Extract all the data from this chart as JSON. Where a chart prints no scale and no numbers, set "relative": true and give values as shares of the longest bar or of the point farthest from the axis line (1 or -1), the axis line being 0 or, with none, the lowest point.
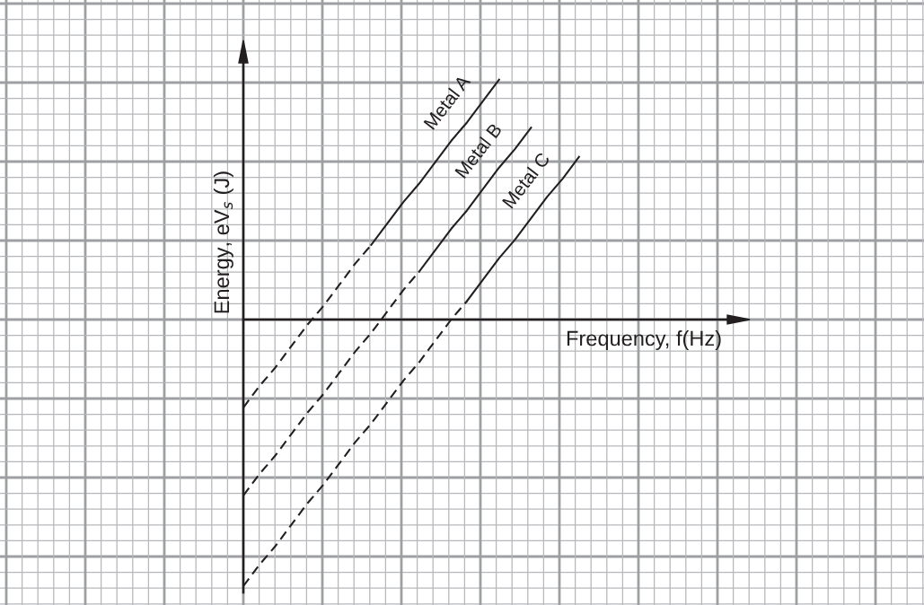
{
  "chart_data": {
    "type": "line",
    "relative": true,
    "grid": true,
    "xlabel": "Frequency, f(Hz)",
    "ylabel": "Energy, eV$_{s}$ (J)",
    "categories": [
      null,
      null,
      null,
      null,
      null,
      null,
      null,
      null,
      null,
      null,
      null,
      null,
      null,
      null,
      null,
      null,
      null,
      null,
      null,
      null,
      null,
      null
    ],
    "series": [
      {
        "name": "Metal A",
        "color": "#231f20",
        "line_style": "solid",
        "values": [
          null,
          null,
          null,
          null,
          null,
          null,
          null,
          null,
          0.28,
          0.36,
          0.44,
          0.51,
          0.59,
          0.67,
          0.74,
          0.82,
          0.9,
          null,
          null,
          null,
          null,
          null
        ]
      },
      {
        "color": "#231f20",
        "line_style": "dashed",
        "values": [
          -0.33,
          -0.25,
          -0.18,
          -0.1,
          -0.02,
          0.05,
          0.13,
          0.21,
          0.28,
          null,
          null,
          null,
          null,
          null,
          null,
          null,
          null,
          null,
          null,
          null,
          null,
          null
        ]
      },
      {
        "name": "Metal B",
        "color": "#231f20",
        "line_style": "solid",
        "values": [
          null,
          null,
          null,
          null,
          null,
          null,
          null,
          null,
          null,
          null,
          null,
          0.18,
          0.26,
          0.34,
          0.41,
          0.49,
          0.57,
          0.64,
          0.72,
          null,
          null,
          null
        ]
      },
      {
        "color": "#231f20",
        "line_style": "dashed",
        "values": [
          -0.66,
          -0.58,
          -0.51,
          -0.43,
          -0.35,
          -0.28,
          -0.2,
          -0.12,
          -0.05,
          0.03,
          0.11,
          0.18,
          null,
          null,
          null,
          null,
          null,
          null,
          null,
          null,
          null,
          null
        ]
      },
      {
        "name": "Metal C",
        "color": "#231f20",
        "line_style": "solid",
        "values": [
          null,
          null,
          null,
          null,
          null,
          null,
          null,
          null,
          null,
          null,
          null,
          null,
          null,
          null,
          0.07,
          0.15,
          0.23,
          0.3,
          0.38,
          0.46,
          0.53,
          0.61
        ]
      },
      {
        "color": "#231f20",
        "line_style": "dashed",
        "values": [
          -1,
          -0.92,
          -0.85,
          -0.77,
          -0.69,
          -0.62,
          -0.54,
          -0.46,
          -0.39,
          -0.31,
          -0.23,
          -0.16,
          -0.08,
          0.0,
          0.07,
          null,
          null,
          null,
          null,
          null,
          null,
          null
        ]
      }
    ]
  }
}
